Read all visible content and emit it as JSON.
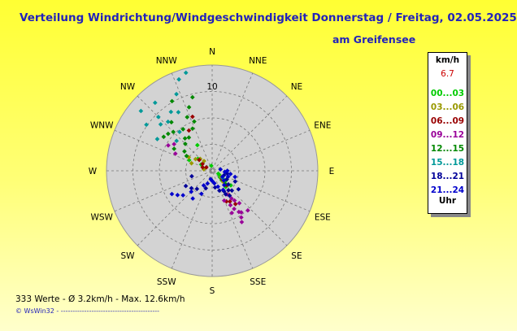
{
  "title": "Verteilung Windrichtung/Windgeschwindigkeit Donnerstag / Freitag, 02.05.2025",
  "subtitle": "am Greifensee",
  "footer": "333 Werte   -   Ø 3.2km/h  -  Max. 12.6km/h",
  "credit": "© WsWin32  -  ------------------------------------------",
  "legend": {
    "unit": "km/h",
    "max_value": "6.7",
    "hour_ranges": [
      {
        "label": "00...03",
        "color": "#00cc00"
      },
      {
        "label": "03...06",
        "color": "#999900"
      },
      {
        "label": "06...09",
        "color": "#990000"
      },
      {
        "label": "09...12",
        "color": "#990099"
      },
      {
        "label": "12...15",
        "color": "#008800"
      },
      {
        "label": "15...18",
        "color": "#009999"
      },
      {
        "label": "18...21",
        "color": "#000099"
      },
      {
        "label": "21...24",
        "color": "#0000cc"
      }
    ],
    "uhr_label": "Uhr"
  },
  "chart_data": {
    "type": "scatter",
    "coordinate_system": "polar",
    "radial_axis": {
      "unit": "km/h",
      "range": [
        0,
        12.5
      ],
      "labeled_tick": "10"
    },
    "directions": [
      "N",
      "NNE",
      "NE",
      "ENE",
      "E",
      "ESE",
      "SE",
      "SSE",
      "S",
      "SSW",
      "SW",
      "WSW",
      "W",
      "WNW",
      "NW",
      "NNW"
    ],
    "series": [
      {
        "name": "00...03",
        "color": "#00cc00",
        "points": [
          [
            130,
            1.2
          ],
          [
            125,
            2.0
          ],
          [
            135,
            1.6
          ],
          [
            120,
            1.0
          ],
          [
            300,
            1.5
          ],
          [
            310,
            2.2
          ],
          [
            295,
            3.0
          ],
          [
            330,
            3.5
          ],
          [
            140,
            2.5
          ],
          [
            115,
            0.8
          ],
          [
            350,
            0.6
          ],
          [
            128,
            2.8
          ]
        ]
      },
      {
        "name": "03...06",
        "color": "#999900",
        "points": [
          [
            305,
            2.4
          ],
          [
            300,
            3.2
          ],
          [
            315,
            2.0
          ],
          [
            290,
            2.6
          ],
          [
            320,
            1.5
          ],
          [
            135,
            1.8
          ],
          [
            125,
            1.3
          ],
          [
            280,
            1.0
          ]
        ]
      },
      {
        "name": "06...09",
        "color": "#990000",
        "points": [
          [
            300,
            0.8
          ],
          [
            305,
            1.4
          ],
          [
            310,
            2.0
          ],
          [
            290,
            1.2
          ],
          [
            330,
            5.5
          ],
          [
            340,
            6.8
          ],
          [
            145,
            3.5
          ],
          [
            150,
            4.2
          ],
          [
            140,
            3.0
          ],
          [
            135,
            2.4
          ],
          [
            145,
            4.8
          ],
          [
            155,
            4.0
          ],
          [
            130,
            1.5
          ]
        ]
      },
      {
        "name": "09...12",
        "color": "#990099",
        "points": [
          [
            150,
            5.2
          ],
          [
            145,
            6.0
          ],
          [
            148,
            6.5
          ],
          [
            155,
            5.5
          ],
          [
            140,
            5.0
          ],
          [
            152,
            4.6
          ],
          [
            147,
            5.8
          ],
          [
            143,
            4.4
          ],
          [
            158,
            3.8
          ],
          [
            138,
            6.3
          ],
          [
            150,
            7.0
          ],
          [
            145,
            4.0
          ],
          [
            148,
            3.3
          ],
          [
            300,
            6.0
          ],
          [
            305,
            5.5
          ],
          [
            295,
            4.8
          ]
        ]
      },
      {
        "name": "12...15",
        "color": "#008800",
        "points": [
          [
            300,
            3.5
          ],
          [
            305,
            4.0
          ],
          [
            315,
            4.5
          ],
          [
            320,
            5.0
          ],
          [
            325,
            6.0
          ],
          [
            335,
            7.0
          ],
          [
            340,
            8.0
          ],
          [
            345,
            9.0
          ],
          [
            315,
            6.5
          ],
          [
            310,
            6.8
          ],
          [
            330,
            9.5
          ],
          [
            300,
            5.2
          ],
          [
            325,
            4.8
          ],
          [
            335,
            5.5
          ],
          [
            320,
            7.5
          ],
          [
            305,
            7.0
          ],
          [
            340,
            6.2
          ],
          [
            128,
            1.8
          ],
          [
            135,
            2.2
          ],
          [
            120,
            2.0
          ]
        ]
      },
      {
        "name": "15...18",
        "color": "#009999",
        "points": [
          [
            315,
            9.0
          ],
          [
            320,
            10.5
          ],
          [
            310,
            11.0
          ],
          [
            305,
            9.5
          ],
          [
            325,
            8.5
          ],
          [
            330,
            8.0
          ],
          [
            318,
            7.8
          ],
          [
            312,
            8.2
          ],
          [
            335,
            10.0
          ],
          [
            300,
            7.5
          ],
          [
            340,
            11.5
          ],
          [
            345,
            12.0
          ],
          [
            320,
            6.0
          ],
          [
            310,
            5.5
          ],
          [
            125,
            1.5
          ]
        ]
      },
      {
        "name": "18...21",
        "color": "#000099",
        "points": [
          [
            140,
            3.0
          ],
          [
            145,
            3.6
          ],
          [
            150,
            2.8
          ],
          [
            135,
            3.3
          ],
          [
            130,
            2.5
          ],
          [
            120,
            2.0
          ],
          [
            110,
            1.5
          ],
          [
            100,
            1.8
          ],
          [
            115,
            3.0
          ],
          [
            125,
            3.8
          ],
          [
            150,
            3.2
          ],
          [
            160,
            2.5
          ],
          [
            170,
            2.0
          ],
          [
            200,
            2.2
          ],
          [
            220,
            2.8
          ],
          [
            230,
            3.2
          ],
          [
            240,
            3.6
          ],
          [
            255,
            2.5
          ]
        ]
      },
      {
        "name": "21...24",
        "color": "#0000cc",
        "points": [
          [
            95,
            1.5
          ],
          [
            100,
            2.2
          ],
          [
            105,
            2.8
          ],
          [
            110,
            2.0
          ],
          [
            120,
            1.4
          ],
          [
            130,
            1.8
          ],
          [
            140,
            2.2
          ],
          [
            150,
            2.6
          ],
          [
            160,
            2.0
          ],
          [
            170,
            1.5
          ],
          [
            180,
            1.2
          ],
          [
            190,
            1.0
          ],
          [
            200,
            1.6
          ],
          [
            210,
            2.0
          ],
          [
            230,
            4.5
          ],
          [
            235,
            5.0
          ],
          [
            240,
            5.5
          ],
          [
            225,
            3.5
          ],
          [
            215,
            4.0
          ],
          [
            205,
            3.0
          ],
          [
            80,
            1.0
          ],
          [
            90,
            1.8
          ]
        ]
      }
    ]
  }
}
